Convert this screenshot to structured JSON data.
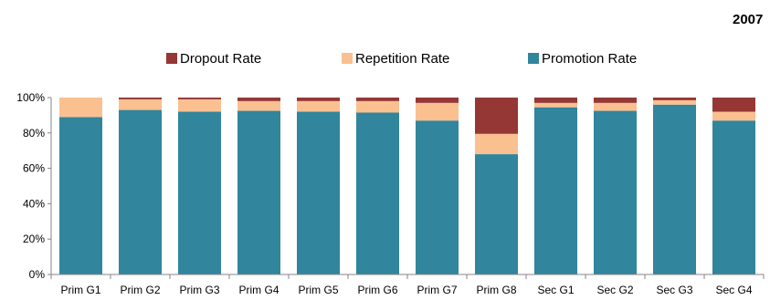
{
  "chart_data": {
    "type": "bar",
    "stacked": true,
    "title": "2007",
    "categories": [
      "Prim G1",
      "Prim G2",
      "Prim G3",
      "Prim G4",
      "Prim G5",
      "Prim G6",
      "Prim G7",
      "Prim G8",
      "Sec G1",
      "Sec G2",
      "Sec G3",
      "Sec G4"
    ],
    "series": [
      {
        "name": "Promotion Rate",
        "color": "#31859C",
        "values": [
          89,
          93,
          92,
          92.5,
          92,
          91.5,
          87,
          68,
          94.5,
          92.5,
          96,
          87
        ]
      },
      {
        "name": "Repetition Rate",
        "color": "#FAC090",
        "values": [
          11,
          6,
          7,
          5.5,
          6,
          6.5,
          10,
          11.5,
          2.5,
          4.5,
          2.5,
          5
        ]
      },
      {
        "name": "Dropout Rate",
        "color": "#953735",
        "values": [
          0,
          1,
          1,
          2,
          2,
          2,
          3,
          20.5,
          3,
          3,
          1.5,
          8
        ]
      }
    ],
    "legend_order": [
      "Dropout Rate",
      "Repetition Rate",
      "Promotion Rate"
    ],
    "legend_position": "top",
    "yticks": [
      "0%",
      "20%",
      "40%",
      "60%",
      "80%",
      "100%"
    ],
    "ylim": [
      0,
      100
    ],
    "xlabel": "",
    "ylabel": "",
    "grid": false
  }
}
